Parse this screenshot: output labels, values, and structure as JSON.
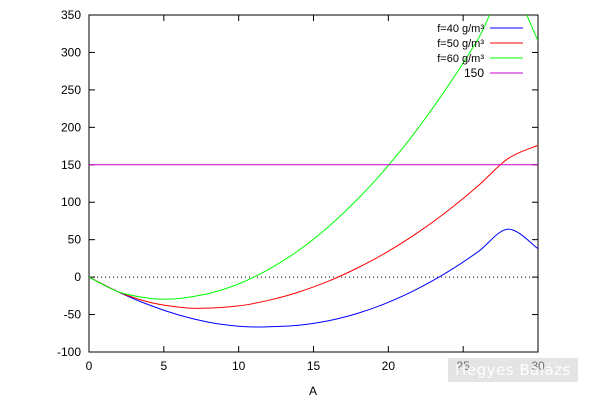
{
  "chart_data": {
    "type": "line",
    "xlabel": "A",
    "ylabel": "",
    "xlim": [
      0,
      30
    ],
    "ylim": [
      -100,
      350
    ],
    "x_ticks": [
      "0",
      "5",
      "10",
      "15",
      "20",
      "25",
      "30"
    ],
    "y_ticks": [
      "-100",
      "-50",
      "0",
      "50",
      "100",
      "150",
      "200",
      "250",
      "300",
      "350"
    ],
    "grid": false,
    "legend_position": "top-right",
    "zero_line": {
      "y": 0,
      "style": "dotted"
    },
    "series": [
      {
        "name": "f=40 g/m³",
        "color": "#0000ff",
        "x": [
          0,
          2,
          4,
          6,
          8,
          10,
          11.5,
          14,
          16,
          18,
          20,
          22,
          24,
          26,
          28,
          30
        ],
        "y": [
          0,
          -20.2,
          -37.1,
          -50.6,
          -60.2,
          -65.6,
          -66.6,
          -64.3,
          -58.3,
          -48.1,
          -33.7,
          -15.1,
          7.3,
          33.9,
          64.1,
          38.0
        ]
      },
      {
        "name": "f=50 g/m³",
        "color": "#ff0000",
        "x": [
          0,
          2,
          4,
          6,
          7.5,
          10,
          12,
          14,
          16,
          18,
          20,
          22,
          24,
          26,
          28,
          30
        ],
        "y": [
          0,
          -20.0,
          -33.4,
          -40.1,
          -41.7,
          -38.4,
          -31.0,
          -20.0,
          -5.4,
          12.8,
          34.5,
          60.0,
          89.0,
          121.8,
          158.3,
          176.0
        ]
      },
      {
        "name": "f=60 g/m³",
        "color": "#00ff00",
        "x": [
          0,
          2,
          4,
          5,
          6,
          8,
          10,
          12,
          14,
          16,
          18,
          20,
          22,
          24,
          26,
          28,
          30
        ],
        "y": [
          0,
          -19.9,
          -28.3,
          -29.4,
          -28.5,
          -21.9,
          -9.0,
          10.3,
          35.6,
          67.3,
          105.1,
          149.0,
          199.2,
          255.6,
          318.0,
          386.5,
          316.0
        ]
      },
      {
        "name": "150",
        "color": "#cc00cc",
        "x": [
          0,
          30
        ],
        "y": [
          150,
          150
        ]
      }
    ]
  },
  "watermark": "Hegyes Balázs"
}
